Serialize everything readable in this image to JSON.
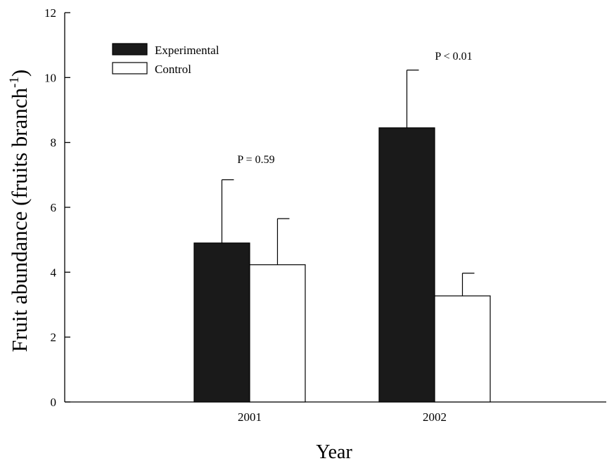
{
  "chart_data": {
    "type": "bar",
    "categories": [
      "2001",
      "2002"
    ],
    "series": [
      {
        "name": "Experimental",
        "values": [
          4.9,
          8.45
        ],
        "errors": [
          1.95,
          1.78
        ],
        "color": "#1a1a1a"
      },
      {
        "name": "Control",
        "values": [
          4.23,
          3.27
        ],
        "errors": [
          1.42,
          0.7
        ],
        "color": "#ffffff"
      }
    ],
    "annotations": [
      "P = 0.59",
      "P < 0.01"
    ],
    "xlabel": "Year",
    "ylabel_main": "Fruit abundance (fruits branch",
    "ylabel_sup": "-1",
    "ylabel_close": ")",
    "ylim": [
      0,
      12
    ],
    "yticks": [
      "0",
      "2",
      "4",
      "6",
      "8",
      "10",
      "12"
    ],
    "grid": false,
    "legend_position": "top-left"
  }
}
